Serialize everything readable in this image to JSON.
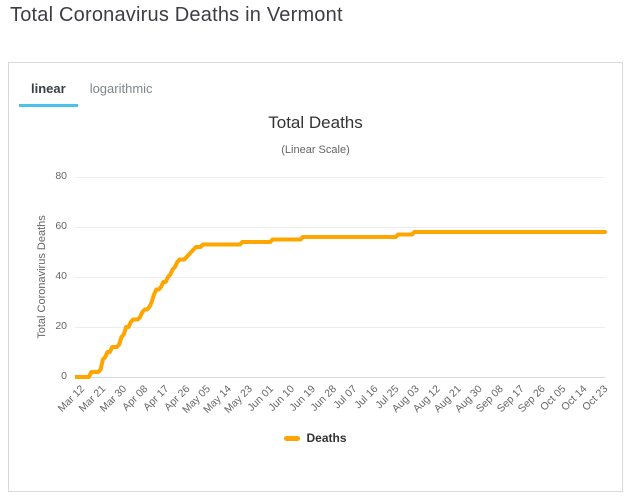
{
  "page": {
    "title": "Total Coronavirus Deaths in Vermont"
  },
  "tabs": [
    {
      "label": "linear",
      "active": true
    },
    {
      "label": "logarithmic",
      "active": false
    }
  ],
  "colors": {
    "series": "#FFA500",
    "active_tab_underline": "#4ac3e8",
    "grid": "#ebedf0",
    "axis_line": "#d3dae2",
    "tick_text": "#666666",
    "title_text": "#333333"
  },
  "chart_data": {
    "type": "line",
    "title": "Total Deaths",
    "subtitle": "(Linear Scale)",
    "xlabel": "",
    "ylabel": "Total Coronavirus Deaths",
    "y_ticks": [
      0,
      20,
      40,
      60,
      80
    ],
    "ylim": [
      0,
      84.8
    ],
    "grid": true,
    "legend_position": "bottom",
    "x_tick_labels": [
      "Mar 12",
      "Mar 21",
      "Mar 30",
      "Apr 08",
      "Apr 17",
      "Apr 26",
      "May 05",
      "May 14",
      "May 23",
      "Jun 01",
      "Jun 10",
      "Jun 19",
      "Jun 28",
      "Jul 07",
      "Jul 16",
      "Jul 25",
      "Aug 03",
      "Aug 12",
      "Aug 21",
      "Aug 30",
      "Sep 08",
      "Sep 17",
      "Sep 26",
      "Oct 05",
      "Oct 14",
      "Oct 23"
    ],
    "x_tick_interval_days": 9,
    "x_start_label": "Mar 12",
    "series": [
      {
        "name": "Deaths",
        "color": "#FFA500",
        "point_interval_days": 1,
        "final_value": 58,
        "values_rle": [
          [
            0,
            7
          ],
          [
            2,
            4
          ],
          [
            3,
            1
          ],
          [
            7,
            1
          ],
          [
            8,
            1
          ],
          [
            10,
            2
          ],
          [
            12,
            3
          ],
          [
            13,
            1
          ],
          [
            16,
            1
          ],
          [
            17,
            1
          ],
          [
            20,
            2
          ],
          [
            22,
            1
          ],
          [
            23,
            3
          ],
          [
            24,
            1
          ],
          [
            26,
            1
          ],
          [
            27,
            2
          ],
          [
            28,
            1
          ],
          [
            30,
            1
          ],
          [
            33,
            1
          ],
          [
            35,
            2
          ],
          [
            36,
            1
          ],
          [
            38,
            2
          ],
          [
            40,
            1
          ],
          [
            41,
            1
          ],
          [
            43,
            1
          ],
          [
            44,
            1
          ],
          [
            46,
            1
          ],
          [
            47,
            3
          ],
          [
            48,
            1
          ],
          [
            49,
            1
          ],
          [
            50,
            1
          ],
          [
            51,
            1
          ],
          [
            52,
            3
          ],
          [
            53,
            17
          ],
          [
            54,
            13
          ],
          [
            55,
            13
          ],
          [
            56,
            41
          ],
          [
            57,
            7
          ],
          [
            58,
            83
          ]
        ]
      }
    ]
  }
}
